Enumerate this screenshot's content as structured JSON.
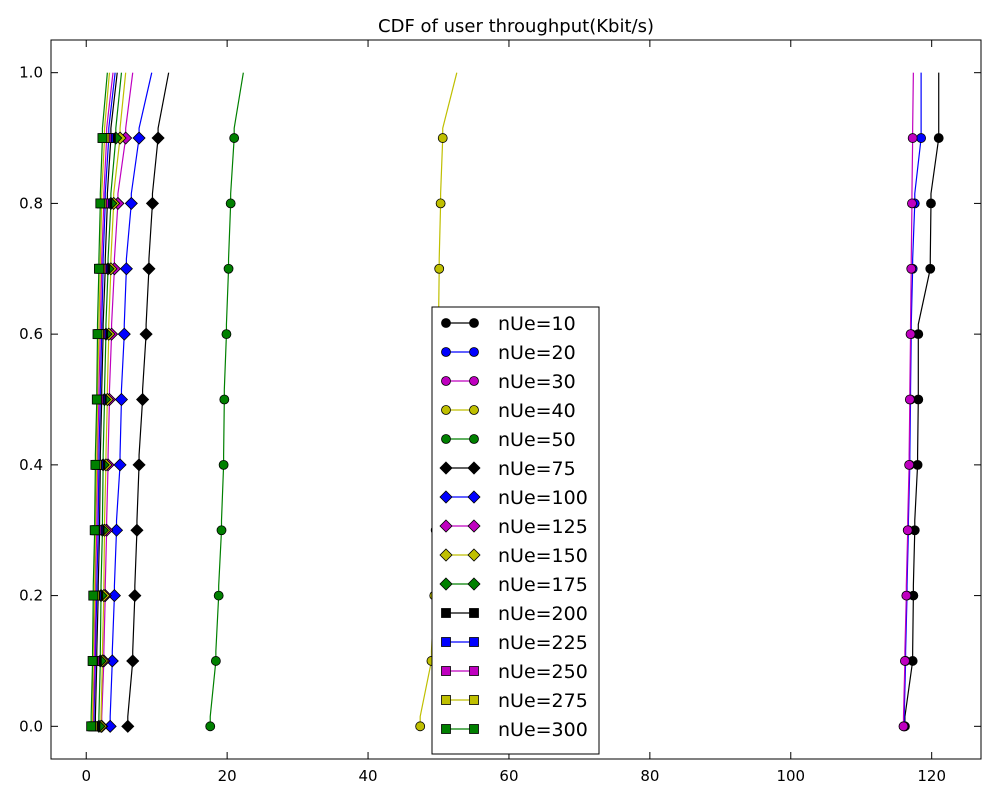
{
  "chart_data": {
    "type": "line",
    "title": "CDF of user throughput(Kbit/s)",
    "xlabel": "",
    "ylabel": "",
    "xlim": [
      -5,
      127
    ],
    "ylim": [
      -0.05,
      1.05
    ],
    "x_ticks": [
      0,
      20,
      40,
      60,
      80,
      100,
      120
    ],
    "y_ticks": [
      0.0,
      0.2,
      0.4,
      0.6,
      0.8,
      1.0
    ],
    "x_tick_labels": [
      "0",
      "20",
      "40",
      "60",
      "80",
      "100",
      "120"
    ],
    "y_tick_labels": [
      "0.0",
      "0.2",
      "0.4",
      "0.6",
      "0.8",
      "1.0"
    ],
    "grid": false,
    "legend_position": "lower-center",
    "marker_y": [
      0.0,
      0.1,
      0.2,
      0.3,
      0.4,
      0.5,
      0.6,
      0.7,
      0.8,
      0.9
    ],
    "series": [
      {
        "name": "nUe=10",
        "color": "#000000",
        "marker": "circle",
        "x": [
          116.2,
          117.3,
          117.4,
          117.6,
          118.0,
          118.1,
          118.1,
          119.8,
          119.9,
          121.0
        ],
        "x_max": 121.0
      },
      {
        "name": "nUe=20",
        "color": "#0000ff",
        "marker": "circle",
        "x": [
          116.1,
          116.3,
          116.5,
          116.7,
          116.9,
          117.0,
          117.1,
          117.3,
          117.6,
          118.5
        ],
        "x_max": 118.5
      },
      {
        "name": "nUe=30",
        "color": "#bf00bf",
        "marker": "circle",
        "x": [
          116.0,
          116.2,
          116.4,
          116.6,
          116.8,
          116.9,
          117.0,
          117.1,
          117.2,
          117.3
        ],
        "x_max": 117.4
      },
      {
        "name": "nUe=40",
        "color": "#bfbf00",
        "marker": "circle",
        "x": [
          47.4,
          49.0,
          49.4,
          49.6,
          49.8,
          49.9,
          50.0,
          50.1,
          50.3,
          50.6
        ],
        "x_max": 52.6
      },
      {
        "name": "nUe=50",
        "color": "#008000",
        "marker": "circle",
        "x": [
          17.6,
          18.4,
          18.8,
          19.2,
          19.5,
          19.6,
          19.9,
          20.2,
          20.5,
          21.0
        ],
        "x_max": 22.3
      },
      {
        "name": "nUe=75",
        "color": "#000000",
        "marker": "diamond",
        "x": [
          5.9,
          6.6,
          6.9,
          7.2,
          7.5,
          8.0,
          8.5,
          8.9,
          9.4,
          10.2
        ],
        "x_max": 11.7
      },
      {
        "name": "nUe=100",
        "color": "#0000ff",
        "marker": "diamond",
        "x": [
          3.4,
          3.7,
          4.0,
          4.3,
          4.8,
          5.0,
          5.4,
          5.7,
          6.4,
          7.5
        ],
        "x_max": 9.3
      },
      {
        "name": "nUe=125",
        "color": "#bf00bf",
        "marker": "diamond",
        "x": [
          2.2,
          2.5,
          2.7,
          2.9,
          3.1,
          3.3,
          3.6,
          4.0,
          4.5,
          5.6
        ],
        "x_max": 6.6
      },
      {
        "name": "nUe=150",
        "color": "#bfbf00",
        "marker": "diamond",
        "x": [
          2.1,
          2.3,
          2.5,
          2.6,
          2.8,
          3.0,
          3.2,
          3.5,
          3.9,
          4.8
        ],
        "x_max": 5.6
      },
      {
        "name": "nUe=175",
        "color": "#008000",
        "marker": "diamond",
        "x": [
          1.8,
          2.0,
          2.1,
          2.3,
          2.4,
          2.6,
          2.8,
          3.1,
          3.5,
          4.2
        ],
        "x_max": 5.0
      },
      {
        "name": "nUe=200",
        "color": "#000000",
        "marker": "square",
        "x": [
          1.3,
          1.5,
          1.7,
          1.9,
          2.0,
          2.2,
          2.4,
          2.7,
          3.0,
          3.5
        ],
        "x_max": 4.4
      },
      {
        "name": "nUe=225",
        "color": "#0000ff",
        "marker": "square",
        "x": [
          1.1,
          1.3,
          1.5,
          1.7,
          1.8,
          2.0,
          2.2,
          2.4,
          2.7,
          3.2
        ],
        "x_max": 4.1
      },
      {
        "name": "nUe=250",
        "color": "#bf00bf",
        "marker": "square",
        "x": [
          1.0,
          1.2,
          1.3,
          1.5,
          1.6,
          1.8,
          2.0,
          2.2,
          2.5,
          2.9
        ],
        "x_max": 3.8
      },
      {
        "name": "nUe=275",
        "color": "#bfbf00",
        "marker": "square",
        "x": [
          0.9,
          1.0,
          1.2,
          1.3,
          1.5,
          1.6,
          1.8,
          2.0,
          2.2,
          2.6
        ],
        "x_max": 3.3
      },
      {
        "name": "nUe=300",
        "color": "#008000",
        "marker": "square",
        "x": [
          0.7,
          0.9,
          1.0,
          1.2,
          1.3,
          1.5,
          1.6,
          1.8,
          2.0,
          2.3
        ],
        "x_max": 3.0
      }
    ]
  }
}
